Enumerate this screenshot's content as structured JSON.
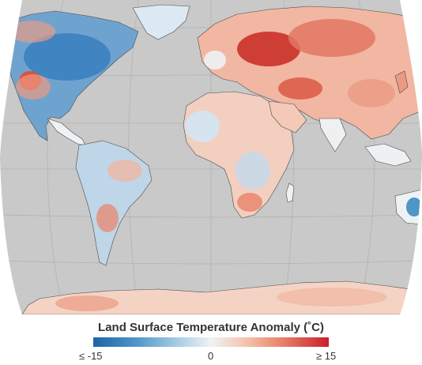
{
  "legend": {
    "title": "Land Surface Temperature Anomaly (˚C)",
    "min_label": "≤ -15",
    "mid_label": "0",
    "max_label": "≥ 15",
    "colors": {
      "cold": "#1f63a6",
      "neutral": "#eef2f4",
      "hot": "#c8202a",
      "no_data": "#c9c9c9"
    }
  }
}
